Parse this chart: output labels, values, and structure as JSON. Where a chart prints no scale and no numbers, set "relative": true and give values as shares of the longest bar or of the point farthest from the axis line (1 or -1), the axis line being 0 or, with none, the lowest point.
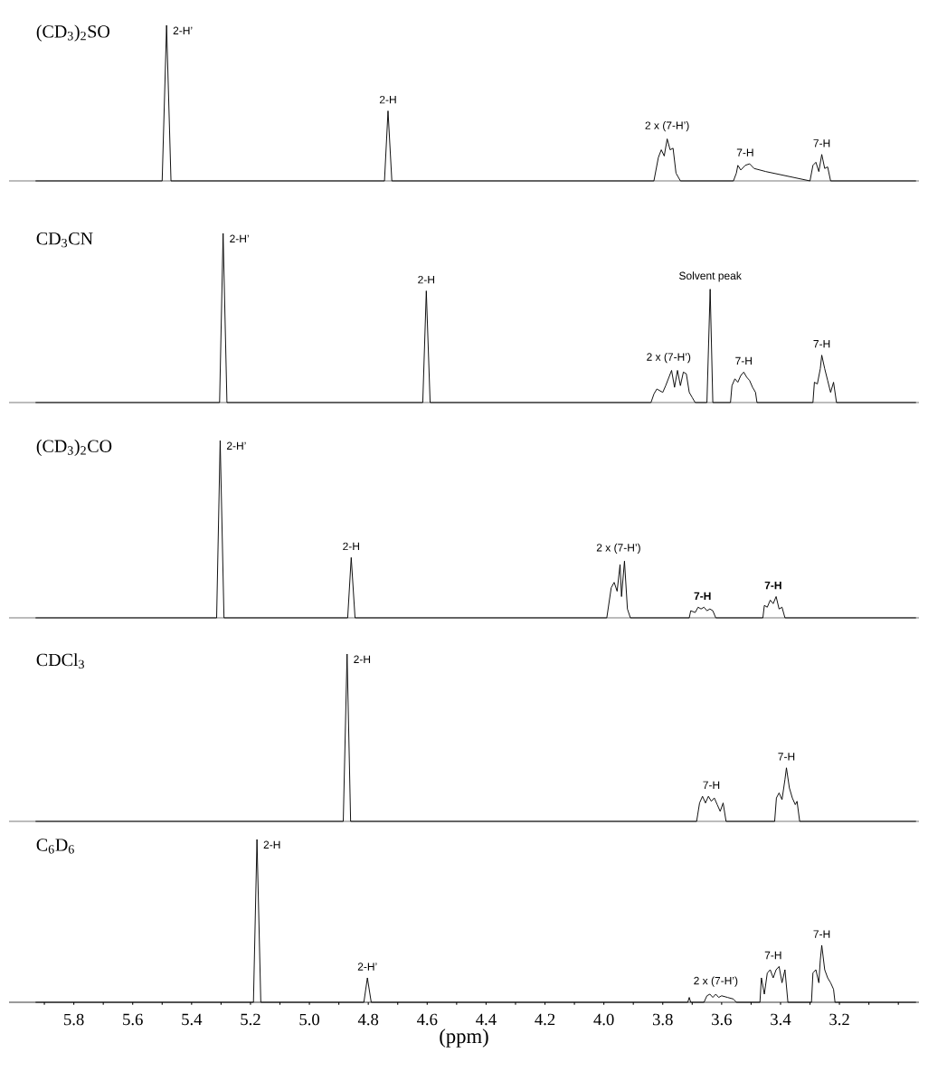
{
  "chart_data": [
    {
      "type": "line",
      "title": "(CD$_{3}$)$_{2}$SO",
      "relative": true,
      "color": "#000000",
      "xlim": [
        6.02,
        2.93
      ],
      "tick_labels": false,
      "x": [
        5.93,
        5.5,
        5.485,
        5.47,
        4.745,
        4.733,
        4.72,
        3.83,
        3.815,
        3.805,
        3.795,
        3.785,
        3.775,
        3.765,
        3.755,
        3.74,
        3.56,
        3.55,
        3.545,
        3.535,
        3.52,
        3.505,
        3.49,
        3.45,
        3.4,
        3.35,
        3.3,
        3.29,
        3.28,
        3.27,
        3.26,
        3.25,
        3.24,
        3.23,
        2.94
      ],
      "values": [
        0,
        0,
        1,
        0,
        0,
        0.45,
        0,
        0,
        0.15,
        0.2,
        0.16,
        0.27,
        0.2,
        0.21,
        0.05,
        0,
        0,
        0.05,
        0.1,
        0.07,
        0.1,
        0.11,
        0.08,
        0.06,
        0.04,
        0.02,
        0,
        0.1,
        0.12,
        0.06,
        0.17,
        0.08,
        0.09,
        0,
        0
      ],
      "annotations": [
        {
          "text": "2-H’",
          "x": 5.485,
          "y": 1
        },
        {
          "text": "2-H",
          "x": 4.733,
          "y": 0.45
        },
        {
          "text": "2 x (7-H’)",
          "x": 3.785,
          "y": 0.27
        },
        {
          "text": "7-H",
          "x": 3.52,
          "y": 0.11
        },
        {
          "text": "7-H",
          "x": 3.26,
          "y": 0.17
        }
      ]
    },
    {
      "type": "line",
      "title": "CD$_{3}$CN",
      "relative": true,
      "color": "#000000",
      "xlim": [
        6.02,
        2.93
      ],
      "tick_labels": false,
      "x": [
        5.93,
        5.305,
        5.293,
        5.28,
        4.615,
        4.603,
        4.59,
        3.84,
        3.83,
        3.82,
        3.8,
        3.79,
        3.77,
        3.76,
        3.75,
        3.74,
        3.73,
        3.72,
        3.71,
        3.7,
        3.69,
        3.65,
        3.639,
        3.63,
        3.57,
        3.565,
        3.555,
        3.545,
        3.535,
        3.525,
        3.515,
        3.505,
        3.495,
        3.485,
        3.48,
        3.29,
        3.285,
        3.275,
        3.265,
        3.26,
        3.25,
        3.24,
        3.23,
        3.22,
        3.21,
        2.94
      ],
      "values": [
        0,
        0,
        1,
        0,
        0,
        0.66,
        0,
        0,
        0.05,
        0.08,
        0.06,
        0.1,
        0.19,
        0.09,
        0.19,
        0.1,
        0.18,
        0.17,
        0.06,
        0.03,
        0,
        0,
        0.67,
        0,
        0,
        0.1,
        0.14,
        0.12,
        0.16,
        0.18,
        0.15,
        0.13,
        0.09,
        0.06,
        0,
        0,
        0.12,
        0.11,
        0.2,
        0.28,
        0.2,
        0.13,
        0.06,
        0.12,
        0,
        0
      ],
      "annotations": [
        {
          "text": "2-H’",
          "x": 5.293,
          "y": 1
        },
        {
          "text": "2-H",
          "x": 4.603,
          "y": 0.66
        },
        {
          "text": "Solvent peak",
          "x": 3.639,
          "y": 0.67
        },
        {
          "text": "2 x (7-H’)",
          "x": 3.78,
          "y": 0.19
        },
        {
          "text": "7-H",
          "x": 3.525,
          "y": 0.18
        },
        {
          "text": "7-H",
          "x": 3.26,
          "y": 0.28
        }
      ]
    },
    {
      "type": "line",
      "title": "(CD$_{3}$)$_{2}$CO",
      "relative": true,
      "color": "#000000",
      "xlim": [
        6.02,
        2.93
      ],
      "tick_labels": false,
      "x": [
        5.93,
        5.315,
        5.303,
        5.29,
        4.87,
        4.858,
        4.845,
        3.99,
        3.975,
        3.965,
        3.955,
        3.945,
        3.94,
        3.93,
        3.92,
        3.91,
        3.71,
        3.705,
        3.69,
        3.68,
        3.67,
        3.66,
        3.65,
        3.64,
        3.63,
        3.62,
        3.46,
        3.455,
        3.445,
        3.435,
        3.425,
        3.415,
        3.405,
        3.395,
        3.385,
        2.94
      ],
      "values": [
        0,
        0,
        1,
        0,
        0,
        0.34,
        0,
        0,
        0.17,
        0.2,
        0.15,
        0.3,
        0.12,
        0.32,
        0.05,
        0,
        0,
        0.04,
        0.03,
        0.06,
        0.05,
        0.06,
        0.04,
        0.05,
        0.04,
        0,
        0,
        0.07,
        0.06,
        0.1,
        0.08,
        0.12,
        0.05,
        0.06,
        0,
        0
      ],
      "annotations": [
        {
          "text": "2-H’",
          "x": 5.303,
          "y": 1
        },
        {
          "text": "2-H",
          "x": 4.858,
          "y": 0.34
        },
        {
          "text": "2 x (7-H’)",
          "x": 3.95,
          "y": 0.32
        },
        {
          "text": "**7-H**",
          "x": 3.665,
          "y": 0.06
        },
        {
          "text": "**7-H**",
          "x": 3.425,
          "y": 0.12
        }
      ]
    },
    {
      "type": "line",
      "title": "CDCl$_{3}$",
      "relative": true,
      "color": "#000000",
      "xlim": [
        6.02,
        2.93
      ],
      "tick_labels": false,
      "x": [
        5.93,
        4.885,
        4.872,
        4.86,
        3.685,
        3.675,
        3.665,
        3.655,
        3.645,
        3.635,
        3.625,
        3.615,
        3.605,
        3.595,
        3.585,
        3.42,
        3.414,
        3.405,
        3.395,
        3.385,
        3.38,
        3.37,
        3.36,
        3.35,
        3.344,
        3.335,
        2.94
      ],
      "values": [
        0,
        0,
        1,
        0,
        0,
        0.11,
        0.15,
        0.11,
        0.15,
        0.12,
        0.14,
        0.1,
        0.06,
        0.11,
        0,
        0,
        0.14,
        0.17,
        0.13,
        0.25,
        0.32,
        0.2,
        0.14,
        0.1,
        0.12,
        0,
        0
      ],
      "annotations": [
        {
          "text": "2-H",
          "x": 4.872,
          "y": 1
        },
        {
          "text": "7-H",
          "x": 3.635,
          "y": 0.15
        },
        {
          "text": "7-H",
          "x": 3.38,
          "y": 0.32
        }
      ]
    },
    {
      "type": "line",
      "title": "C$_{6}$D$_{6}$",
      "relative": true,
      "color": "#000000",
      "xlim": [
        6.02,
        2.93
      ],
      "tick_labels": "x",
      "xlabel": "(ppm)",
      "xticks": [
        {
          "value": 5.9,
          "label": null
        },
        5.8,
        {
          "value": 5.7,
          "label": null
        },
        5.6,
        {
          "value": 5.5,
          "label": null
        },
        5.4,
        {
          "value": 5.3,
          "label": null
        },
        5.2,
        {
          "value": 5.1,
          "label": null
        },
        {
          "value": 5.0,
          "label": "5.0"
        },
        {
          "value": 4.9,
          "label": null
        },
        4.8,
        {
          "value": 4.7,
          "label": null
        },
        4.6,
        {
          "value": 4.5,
          "label": null
        },
        4.4,
        {
          "value": 4.3,
          "label": null
        },
        4.2,
        {
          "value": 4.1,
          "label": null
        },
        {
          "value": 4.0,
          "label": "4.0"
        },
        {
          "value": 3.9,
          "label": null
        },
        3.8,
        {
          "value": 3.7,
          "label": null
        },
        3.6,
        {
          "value": 3.5,
          "label": null
        },
        3.4,
        {
          "value": 3.3,
          "label": null
        },
        3.2,
        {
          "value": 3.1,
          "label": null
        },
        {
          "value": 3.0,
          "label": null
        }
      ],
      "x": [
        5.93,
        5.19,
        5.178,
        5.165,
        4.815,
        4.803,
        4.79,
        3.715,
        3.71,
        3.705,
        3.66,
        3.65,
        3.64,
        3.63,
        3.62,
        3.61,
        3.6,
        3.58,
        3.56,
        3.55,
        3.47,
        3.465,
        3.455,
        3.445,
        3.435,
        3.425,
        3.415,
        3.405,
        3.395,
        3.385,
        3.375,
        3.295,
        3.29,
        3.28,
        3.27,
        3.265,
        3.26,
        3.25,
        3.24,
        3.23,
        3.22,
        3.215,
        2.94
      ],
      "values": [
        0,
        0,
        1,
        0,
        0,
        0.15,
        0,
        0,
        0.03,
        0,
        0,
        0.04,
        0.05,
        0.03,
        0.05,
        0.03,
        0.04,
        0.03,
        0.02,
        0,
        0,
        0.15,
        0.05,
        0.18,
        0.2,
        0.15,
        0.2,
        0.22,
        0.12,
        0.2,
        0,
        0,
        0.18,
        0.2,
        0.12,
        0.26,
        0.35,
        0.2,
        0.15,
        0.12,
        0.08,
        0,
        0
      ],
      "annotations": [
        {
          "text": "2-H",
          "x": 5.178,
          "y": 1
        },
        {
          "text": "2-H’",
          "x": 4.803,
          "y": 0.15
        },
        {
          "text": "2 x (7-H’)",
          "x": 3.62,
          "y": 0.05
        },
        {
          "text": "7-H",
          "x": 3.425,
          "y": 0.22
        },
        {
          "text": "7-H",
          "x": 3.26,
          "y": 0.35
        }
      ]
    }
  ]
}
